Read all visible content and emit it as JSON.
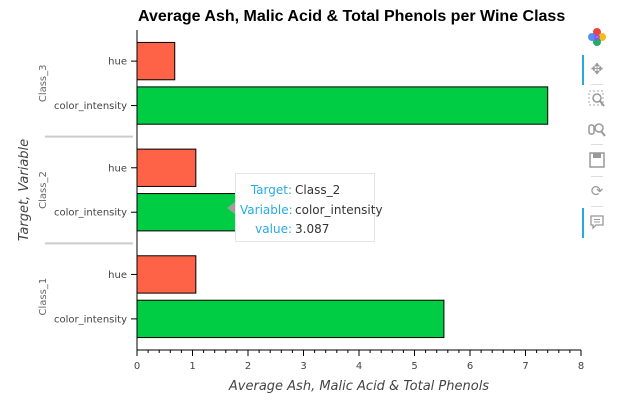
{
  "chart_data": {
    "type": "bar",
    "orientation": "horizontal",
    "title": "Average Ash, Malic Acid & Total Phenols per Wine Class",
    "xlabel": "Average Ash, Malic Acid & Total Phenols",
    "ylabel": "Target, Variable",
    "xlim": [
      0,
      8
    ],
    "xticks": [
      "0",
      "1",
      "2",
      "3",
      "4",
      "5",
      "6",
      "7",
      "8"
    ],
    "groups": [
      {
        "name": "Class_3",
        "bars": [
          {
            "variable": "hue",
            "value": 0.68
          },
          {
            "variable": "color_intensity",
            "value": 7.4
          }
        ]
      },
      {
        "name": "Class_2",
        "bars": [
          {
            "variable": "hue",
            "value": 1.06
          },
          {
            "variable": "color_intensity",
            "value": 3.087
          }
        ]
      },
      {
        "name": "Class_1",
        "bars": [
          {
            "variable": "hue",
            "value": 1.06
          },
          {
            "variable": "color_intensity",
            "value": 5.53
          }
        ]
      }
    ],
    "colors": {
      "hue": "#ff6347",
      "color_intensity": "#00cc44"
    },
    "grid": false,
    "legend": "none"
  },
  "tooltip": {
    "rows": [
      {
        "key": "Target:",
        "value": "Class_2"
      },
      {
        "key": "Variable:",
        "value": "color_intensity"
      },
      {
        "key": "value:",
        "value": "3.087"
      }
    ]
  },
  "toolbar": {
    "tools": [
      "bokeh-logo-icon",
      "pan-icon",
      "box-zoom-icon",
      "wheel-zoom-icon",
      "save-icon",
      "reset-icon",
      "hover-icon"
    ]
  }
}
